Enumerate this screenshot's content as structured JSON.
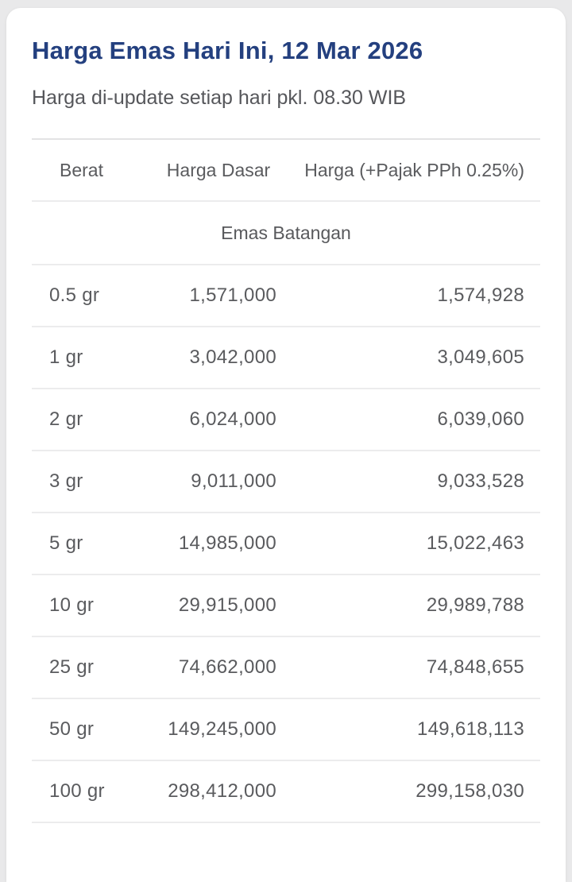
{
  "header": {
    "title": "Harga Emas Hari Ini, 12 Mar 2026",
    "subtitle": "Harga di-update setiap hari pkl. 08.30 WIB"
  },
  "table": {
    "columns": [
      "Berat",
      "Harga Dasar",
      "Harga (+Pajak PPh 0.25%)"
    ],
    "section": "Emas Batangan",
    "rows": [
      {
        "berat": "0.5 gr",
        "harga_dasar": "1,571,000",
        "harga_pajak": "1,574,928"
      },
      {
        "berat": "1 gr",
        "harga_dasar": "3,042,000",
        "harga_pajak": "3,049,605"
      },
      {
        "berat": "2 gr",
        "harga_dasar": "6,024,000",
        "harga_pajak": "6,039,060"
      },
      {
        "berat": "3 gr",
        "harga_dasar": "9,011,000",
        "harga_pajak": "9,033,528"
      },
      {
        "berat": "5 gr",
        "harga_dasar": "14,985,000",
        "harga_pajak": "15,022,463"
      },
      {
        "berat": "10 gr",
        "harga_dasar": "29,915,000",
        "harga_pajak": "29,989,788"
      },
      {
        "berat": "25 gr",
        "harga_dasar": "74,662,000",
        "harga_pajak": "74,848,655"
      },
      {
        "berat": "50 gr",
        "harga_dasar": "149,245,000",
        "harga_pajak": "149,618,113"
      },
      {
        "berat": "100 gr",
        "harga_dasar": "298,412,000",
        "harga_pajak": "299,158,030"
      }
    ]
  },
  "colors": {
    "title": "#24407F",
    "body_text": "#5A5B5E",
    "divider": "#ECECED",
    "card_background": "#FFFFFF",
    "page_background": "#E9E9EA"
  }
}
